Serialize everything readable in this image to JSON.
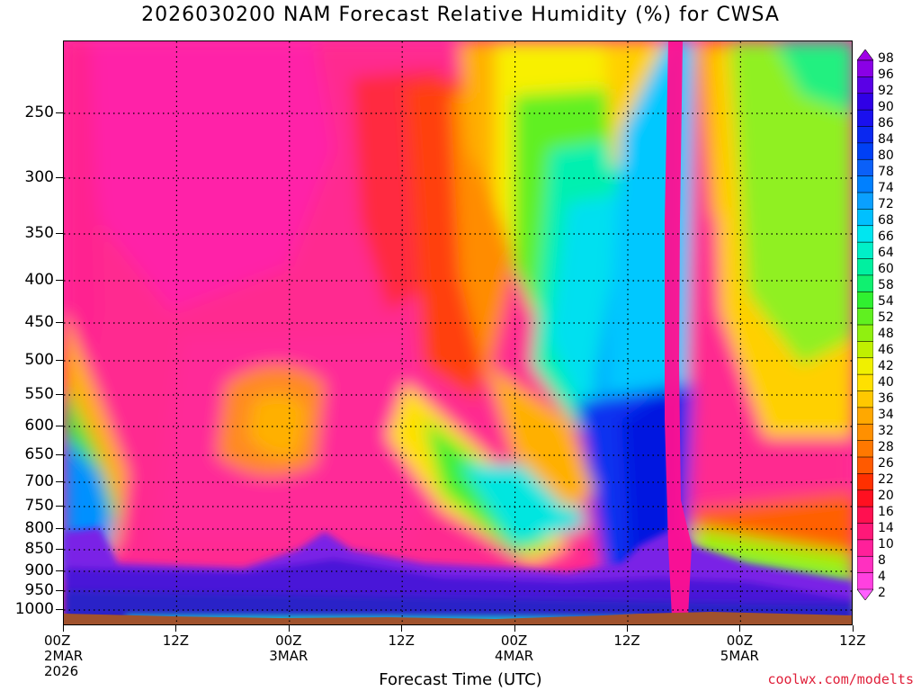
{
  "title": "2026030200 NAM Forecast Relative Humidity (%) for CWSA",
  "chart_data": {
    "type": "heatmap",
    "title": "2026030200 NAM Forecast Relative Humidity (%) for CWSA",
    "xlabel": "Forecast Time (UTC)",
    "ylabel": "",
    "y_ticks": [
      "250",
      "300",
      "350",
      "400",
      "450",
      "500",
      "550",
      "600",
      "650",
      "700",
      "750",
      "800",
      "850",
      "900",
      "950",
      "1000"
    ],
    "x_ticks": [
      {
        "line1": "00Z",
        "line2": "2MAR",
        "line3": "2026"
      },
      {
        "line1": "12Z",
        "line2": "",
        "line3": ""
      },
      {
        "line1": "00Z",
        "line2": "3MAR",
        "line3": ""
      },
      {
        "line1": "12Z",
        "line2": "",
        "line3": ""
      },
      {
        "line1": "00Z",
        "line2": "4MAR",
        "line3": ""
      },
      {
        "line1": "12Z",
        "line2": "",
        "line3": ""
      },
      {
        "line1": "00Z",
        "line2": "5MAR",
        "line3": ""
      },
      {
        "line1": "12Z",
        "line2": "",
        "line3": ""
      }
    ],
    "colorbar_levels": [
      98,
      96,
      92,
      90,
      86,
      84,
      80,
      78,
      74,
      72,
      68,
      66,
      64,
      60,
      58,
      54,
      52,
      48,
      46,
      42,
      40,
      36,
      34,
      32,
      28,
      26,
      22,
      20,
      16,
      14,
      10,
      8,
      4,
      2
    ],
    "colorbar_colors": [
      "#a000e6",
      "#8a00e6",
      "#5a00e6",
      "#3000e6",
      "#1a10ee",
      "#0a28f0",
      "#0040f5",
      "#0a60f8",
      "#0080ff",
      "#0aa0ff",
      "#00c0ff",
      "#00e6f0",
      "#00f0c8",
      "#00f0a0",
      "#10f070",
      "#30f030",
      "#60f020",
      "#90f010",
      "#c0f000",
      "#f0f000",
      "#ffe000",
      "#ffc800",
      "#ffa800",
      "#ff9000",
      "#ff7800",
      "#ff5a00",
      "#ff3000",
      "#ff1020",
      "#ff1050",
      "#ff1878",
      "#ff209a",
      "#ff30c0",
      "#ff40e0",
      "#ff60ff"
    ],
    "grid": true,
    "legend": "right colorbar"
  },
  "credit": "coolwx.com/modelts"
}
